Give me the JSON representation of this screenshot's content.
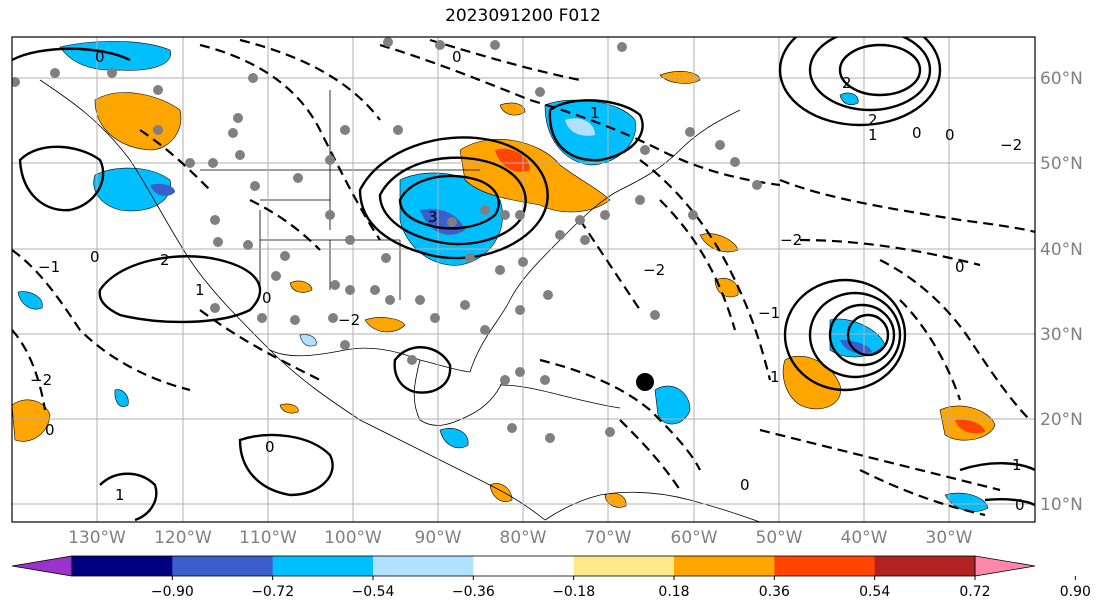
{
  "title": "2023091200 F012",
  "longitude_labels": [
    "130°W",
    "120°W",
    "110°W",
    "100°W",
    "90°W",
    "80°W",
    "70°W",
    "60°W",
    "50°W",
    "40°W",
    "30°W"
  ],
  "latitude_labels": [
    "60°N",
    "50°N",
    "40°N",
    "30°N",
    "20°N",
    "10°N"
  ],
  "colorbar": {
    "colors": [
      "#9933cc",
      "#000080",
      "#3a5fcd",
      "#00bfff",
      "#b0e2ff",
      "#ffffff",
      "#ffe88a",
      "#ffa500",
      "#ff4500",
      "#b22222",
      "#ff88aa"
    ],
    "tick_labels": [
      "−0.90",
      "−0.72",
      "−0.54",
      "−0.36",
      "−0.18",
      "0.18",
      "0.36",
      "0.54",
      "0.72",
      "0.90"
    ]
  },
  "contour_labels": [
    {
      "text": "0"
    },
    {
      "text": "1"
    },
    {
      "text": "2"
    },
    {
      "text": "−1"
    },
    {
      "text": "−2"
    },
    {
      "text": "3"
    }
  ],
  "colors": {
    "grid": "#b0b0b0",
    "contour": "#000000",
    "station": "#808080",
    "marker": "#000000"
  }
}
